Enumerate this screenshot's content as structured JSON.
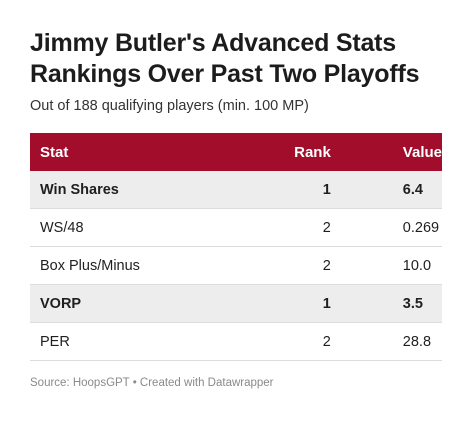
{
  "chart_data": {
    "type": "table",
    "title": "Jimmy Butler's Advanced Stats Rankings Over Past Two Playoffs",
    "title_lines": [
      "Jimmy Butler's Advanced Stats",
      "Rankings Over Past Two Playoffs"
    ],
    "subtitle": "Out of 188 qualifying players (min. 100 MP)",
    "columns": [
      "Stat",
      "Rank",
      "Value"
    ],
    "rows": [
      {
        "stat": "Win Shares",
        "rank": "1",
        "value": "6.4",
        "highlight": true
      },
      {
        "stat": "WS/48",
        "rank": "2",
        "value": "0.269",
        "highlight": false
      },
      {
        "stat": "Box Plus/Minus",
        "rank": "2",
        "value": "10.0",
        "highlight": false
      },
      {
        "stat": "VORP",
        "rank": "1",
        "value": "3.5",
        "highlight": true
      },
      {
        "stat": "PER",
        "rank": "2",
        "value": "28.8",
        "highlight": false
      }
    ],
    "header_color": "#a30d2c",
    "highlight_color": "#ededed"
  },
  "footer": "Source: HoopsGPT • Created with Datawrapper"
}
